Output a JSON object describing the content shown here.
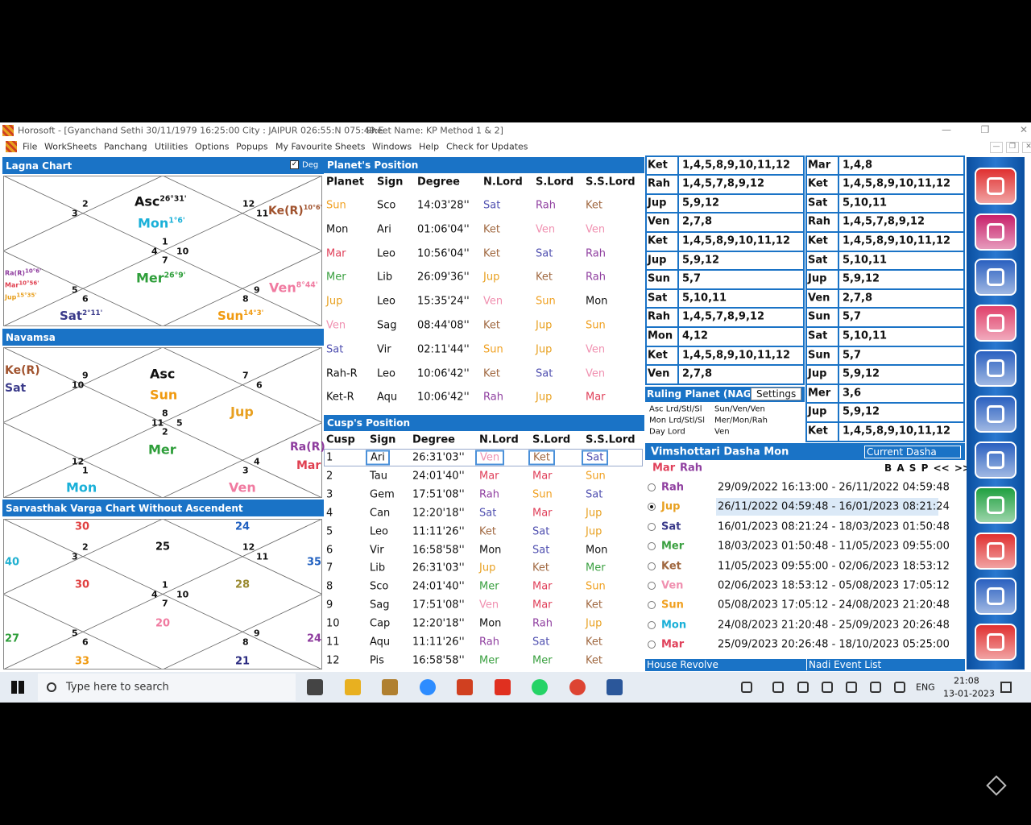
{
  "titlebar": {
    "title": "Horosoft - [Gyanchand Sethi 30/11/1979 16:25:00  City : JAIPUR 026:55:N 075:49:E",
    "sheet": "Sheet Name: KP Method 1 & 2]"
  },
  "menu": [
    "File",
    "WorkSheets",
    "Panchang",
    "Utilities",
    "Options",
    "Popups",
    "My Favourite Sheets",
    "Windows",
    "Help",
    "Check for Updates"
  ],
  "lagna": {
    "title": "Lagna Chart",
    "deg_toggle": "Deg",
    "houses": [
      "2",
      "3",
      "12",
      "11",
      "1",
      "4",
      "10",
      "7",
      "5",
      "6",
      "9",
      "8"
    ],
    "planets": [
      {
        "name": "Asc",
        "deg": "26°31'",
        "color": "#111111"
      },
      {
        "name": "Mon",
        "deg": "1°6'",
        "color": "#1ab0d8"
      },
      {
        "name": "Ke(R)",
        "deg": "10°6'",
        "color": "#a0522d"
      },
      {
        "name": "Mer",
        "deg": "26°9'",
        "color": "#2e9e3a"
      },
      {
        "name": "Ven",
        "deg": "8°44'",
        "color": "#f07aa0"
      },
      {
        "name": "Sat",
        "deg": "2°11'",
        "color": "#3a3a8a"
      },
      {
        "name": "Sun",
        "deg": "14°3'",
        "color": "#f09a10"
      },
      {
        "name": "Ra(R)",
        "deg": "10°6'",
        "color": "#8e3c9e"
      },
      {
        "name": "Mar",
        "deg": "10°56'",
        "color": "#e04050"
      },
      {
        "name": "Jup",
        "deg": "15°35'",
        "color": "#e8a020"
      }
    ]
  },
  "navamsa": {
    "title": "Navamsa",
    "houses": [
      "9",
      "10",
      "7",
      "6",
      "8",
      "11",
      "5",
      "2",
      "12",
      "1",
      "4",
      "3"
    ],
    "planets": [
      {
        "name": "Ke(R)",
        "color": "#a0522d"
      },
      {
        "name": "Sat",
        "color": "#3a3a8a"
      },
      {
        "name": "Asc",
        "color": "#111111"
      },
      {
        "name": "Sun",
        "color": "#f09a10"
      },
      {
        "name": "Jup",
        "color": "#e8a020"
      },
      {
        "name": "Mer",
        "color": "#2e9e3a"
      },
      {
        "name": "Ra(R)",
        "color": "#8e3c9e"
      },
      {
        "name": "Mar",
        "color": "#e04050"
      },
      {
        "name": "Mon",
        "color": "#1ab0d8"
      },
      {
        "name": "Ven",
        "color": "#f07aa0"
      }
    ]
  },
  "sarvasthak": {
    "title": "Sarvasthak Varga Chart Without Ascendent",
    "houses": [
      "2",
      "3",
      "12",
      "11",
      "1",
      "4",
      "10",
      "7",
      "5",
      "6",
      "9",
      "8"
    ],
    "values": [
      {
        "value": 30,
        "color": "#e04040"
      },
      {
        "value": 24,
        "color": "#2060c0"
      },
      {
        "value": 40,
        "color": "#20b0d0"
      },
      {
        "value": 25,
        "color": "#111111"
      },
      {
        "value": 35,
        "color": "#2060c0"
      },
      {
        "value": 30,
        "color": "#e04040"
      },
      {
        "value": 28,
        "color": "#9a8a30"
      },
      {
        "value": 20,
        "color": "#f07aa0"
      },
      {
        "value": 27,
        "color": "#2e9e3a"
      },
      {
        "value": 24,
        "color": "#8e3c9e"
      },
      {
        "value": 33,
        "color": "#f09a10"
      },
      {
        "value": 21,
        "color": "#2a2a80"
      }
    ]
  },
  "planet_colors": {
    "Sun": "#f0a020",
    "Mar": "#e0405a",
    "Mer": "#3aa040",
    "Jup": "#e8a020",
    "Ven": "#f090b0",
    "Sat": "#5050b0",
    "Rah": "#9040a0",
    "Ket": "#a06840"
  },
  "planets_table": {
    "title": "Planet's Position",
    "headers": [
      "Planet",
      "Sign",
      "Degree",
      "N.Lord",
      "S.Lord",
      "S.S.Lord"
    ],
    "rows": [
      [
        "Sun",
        "Sco",
        "14:03'28''",
        "Sat",
        "Rah",
        "Ket"
      ],
      [
        "Mon",
        "Ari",
        "01:06'04''",
        "Ket",
        "Ven",
        "Ven"
      ],
      [
        "Mar",
        "Leo",
        "10:56'04''",
        "Ket",
        "Sat",
        "Rah"
      ],
      [
        "Mer",
        "Lib",
        "26:09'36''",
        "Jup",
        "Ket",
        "Rah"
      ],
      [
        "Jup",
        "Leo",
        "15:35'24''",
        "Ven",
        "Sun",
        "Mon"
      ],
      [
        "Ven",
        "Sag",
        "08:44'08''",
        "Ket",
        "Jup",
        "Sun"
      ],
      [
        "Sat",
        "Vir",
        "02:11'44''",
        "Sun",
        "Jup",
        "Ven"
      ],
      [
        "Rah-R",
        "Leo",
        "10:06'42''",
        "Ket",
        "Sat",
        "Ven"
      ],
      [
        "Ket-R",
        "Aqu",
        "10:06'42''",
        "Rah",
        "Jup",
        "Mar"
      ]
    ]
  },
  "cusps_table": {
    "title": "Cusp's Position",
    "headers": [
      "Cusp",
      "Sign",
      "Degree",
      "N.Lord",
      "S.Lord",
      "S.S.Lord"
    ],
    "rows": [
      [
        "1",
        "Ari",
        "26:31'03''",
        "Ven",
        "Ket",
        "Sat"
      ],
      [
        "2",
        "Tau",
        "24:01'40''",
        "Mar",
        "Mar",
        "Sun"
      ],
      [
        "3",
        "Gem",
        "17:51'08''",
        "Rah",
        "Sun",
        "Sat"
      ],
      [
        "4",
        "Can",
        "12:20'18''",
        "Sat",
        "Mar",
        "Jup"
      ],
      [
        "5",
        "Leo",
        "11:11'26''",
        "Ket",
        "Sat",
        "Jup"
      ],
      [
        "6",
        "Vir",
        "16:58'58''",
        "Mon",
        "Sat",
        "Mon"
      ],
      [
        "7",
        "Lib",
        "26:31'03''",
        "Jup",
        "Ket",
        "Mer"
      ],
      [
        "8",
        "Sco",
        "24:01'40''",
        "Mer",
        "Mar",
        "Sun"
      ],
      [
        "9",
        "Sag",
        "17:51'08''",
        "Ven",
        "Mar",
        "Ket"
      ],
      [
        "10",
        "Cap",
        "12:20'18''",
        "Mon",
        "Rah",
        "Jup"
      ],
      [
        "11",
        "Aqu",
        "11:11'26''",
        "Rah",
        "Sat",
        "Ket"
      ],
      [
        "12",
        "Pis",
        "16:58'58''",
        "Mer",
        "Mer",
        "Ket"
      ]
    ]
  },
  "significators_left": [
    [
      "Ket",
      "1,4,5,8,9,10,11,12"
    ],
    [
      "Rah",
      "1,4,5,7,8,9,12"
    ],
    [
      "Jup",
      "5,9,12"
    ],
    [
      "Ven",
      "2,7,8"
    ],
    [
      "Ket",
      "1,4,5,8,9,10,11,12"
    ],
    [
      "Jup",
      "5,9,12"
    ],
    [
      "Sun",
      "5,7"
    ],
    [
      "Sat",
      "5,10,11"
    ],
    [
      "Rah",
      "1,4,5,7,8,9,12"
    ],
    [
      "Mon",
      "4,12"
    ],
    [
      "Ket",
      "1,4,5,8,9,10,11,12"
    ],
    [
      "Ven",
      "2,7,8"
    ]
  ],
  "significators_right": [
    [
      "Mar",
      "1,4,8"
    ],
    [
      "Ket",
      "1,4,5,8,9,10,11,12"
    ],
    [
      "Sat",
      "5,10,11"
    ],
    [
      "Rah",
      "1,4,5,7,8,9,12"
    ],
    [
      "Ket",
      "1,4,5,8,9,10,11,12"
    ],
    [
      "Sat",
      "5,10,11"
    ],
    [
      "Jup",
      "5,9,12"
    ],
    [
      "Ven",
      "2,7,8"
    ],
    [
      "Sun",
      "5,7"
    ],
    [
      "Sat",
      "5,10,11"
    ],
    [
      "Sun",
      "5,7"
    ],
    [
      "Jup",
      "5,9,12"
    ],
    [
      "Mer",
      "3,6"
    ],
    [
      "Jup",
      "5,9,12"
    ],
    [
      "Ket",
      "1,4,5,8,9,10,11,12"
    ]
  ],
  "ruling": {
    "title": "Ruling Planet (NAGP",
    "settings": "Settings",
    "rows": [
      [
        "Asc Lrd/Stl/Sl",
        "Sun/Ven/Ven"
      ],
      [
        "Mon Lrd/Stl/Sl",
        "Mer/Mon/Rah"
      ],
      [
        "Day Lord",
        "Ven"
      ]
    ]
  },
  "dasha": {
    "title": "Vimshottari Dasha  Mon",
    "current": "Current Dasha",
    "path": [
      {
        "name": "Mar",
        "color": "#e0405a"
      },
      {
        "name": "Rah",
        "color": "#9040a0"
      }
    ],
    "nav": "B A S P << >>",
    "selected": 1,
    "rows": [
      {
        "planet": "Rah",
        "period": "29/09/2022 16:13:00 - 26/11/2022 04:59:48",
        "color": "#9040a0"
      },
      {
        "planet": "Jup",
        "period": "26/11/2022 04:59:48 - 16/01/2023 08:21:24",
        "color": "#e8a020"
      },
      {
        "planet": "Sat",
        "period": "16/01/2023 08:21:24 - 18/03/2023 01:50:48",
        "color": "#3a3a8a"
      },
      {
        "planet": "Mer",
        "period": "18/03/2023 01:50:48 - 11/05/2023 09:55:00",
        "color": "#3aa040"
      },
      {
        "planet": "Ket",
        "period": "11/05/2023 09:55:00 - 02/06/2023 18:53:12",
        "color": "#a06840"
      },
      {
        "planet": "Ven",
        "period": "02/06/2023 18:53:12 - 05/08/2023 17:05:12",
        "color": "#f090b0"
      },
      {
        "planet": "Sun",
        "period": "05/08/2023 17:05:12 - 24/08/2023 21:20:48",
        "color": "#f0a020"
      },
      {
        "planet": "Mon",
        "period": "24/08/2023 21:20:48 - 25/09/2023 20:26:48",
        "color": "#1ab0d8"
      },
      {
        "planet": "Mar",
        "period": "25/09/2023 20:26:48 - 18/10/2023 05:25:00",
        "color": "#e0405a"
      }
    ]
  },
  "bottom_tabs": [
    "House Revolve",
    "Nadi Event List"
  ],
  "taskbar": {
    "search": "Type here to search",
    "lang": "ENG",
    "time": "21:08",
    "date": "13-01-2023"
  }
}
